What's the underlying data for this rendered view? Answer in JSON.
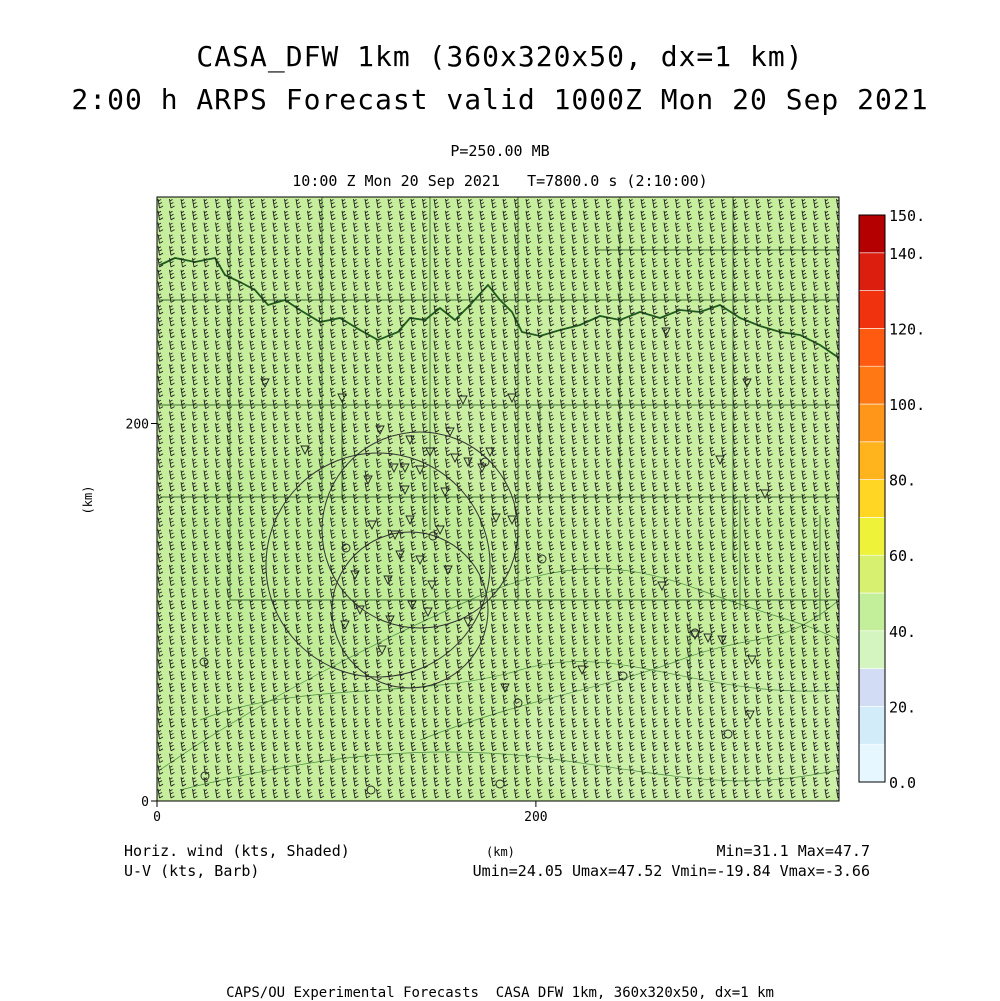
{
  "header": {
    "title_line1": "CASA_DFW 1km (360x320x50, dx=1 km)",
    "title_line2": "2:00 h ARPS Forecast valid 1000Z Mon 20 Sep 2021",
    "pressure_level": "P=250.00 MB",
    "time_line": "10:00 Z Mon 20 Sep 2021   T=7800.0 s (2:10:00)"
  },
  "bottom_labels": {
    "left_line1": "Horiz. wind (kts, Shaded)",
    "left_line2": "U-V (kts, Barb)",
    "right_line1": "Min=31.1 Max=47.7",
    "right_line2": "Umin=24.05 Umax=47.52 Vmin=-19.84 Vmax=-3.66",
    "x_unit": "(km)"
  },
  "footer": "CAPS/OU Experimental Forecasts  CASA DFW 1km, 360x320x50, dx=1 km",
  "chart_data": {
    "type": "heatmap",
    "xlabel": "(km)",
    "ylabel": "(km)",
    "xlim": [
      0,
      360
    ],
    "ylim": [
      0,
      320
    ],
    "x_ticks": [
      "0",
      "200"
    ],
    "y_ticks": [
      "0",
      "200"
    ],
    "field": "Horiz. wind (kts, Shaded)",
    "overlay": "U-V (kts, Barb)",
    "stats": {
      "min": 31.1,
      "max": 47.7,
      "umin": 24.05,
      "umax": 47.52,
      "vmin": -19.84,
      "vmax": -3.66
    },
    "colorbar": {
      "range": [
        0,
        150
      ],
      "tick_labels": [
        "150.",
        "140.",
        "120.",
        "100.",
        "80.",
        "60.",
        "40.",
        "20.",
        "0.0"
      ],
      "tick_values": [
        150,
        140,
        120,
        100,
        80,
        60,
        40,
        20,
        0
      ],
      "bins": [
        {
          "from": 0,
          "to": 10,
          "color": "#e6f7ff"
        },
        {
          "from": 10,
          "to": 20,
          "color": "#d2ecfa"
        },
        {
          "from": 20,
          "to": 30,
          "color": "#d2dcf5"
        },
        {
          "from": 30,
          "to": 40,
          "color": "#d4f5c0"
        },
        {
          "from": 40,
          "to": 50,
          "color": "#c4ef9a"
        },
        {
          "from": 50,
          "to": 60,
          "color": "#d7f070"
        },
        {
          "from": 60,
          "to": 70,
          "color": "#eef33a"
        },
        {
          "from": 70,
          "to": 80,
          "color": "#ffd624"
        },
        {
          "from": 80,
          "to": 90,
          "color": "#ffb41e"
        },
        {
          "from": 90,
          "to": 100,
          "color": "#ff961a"
        },
        {
          "from": 100,
          "to": 110,
          "color": "#ff7814"
        },
        {
          "from": 110,
          "to": 120,
          "color": "#ff5a0f"
        },
        {
          "from": 120,
          "to": 130,
          "color": "#f0320f"
        },
        {
          "from": 130,
          "to": 140,
          "color": "#dc1e0f"
        },
        {
          "from": 140,
          "to": 150,
          "color": "#b40000"
        }
      ]
    },
    "field_color": "#c6ee9c",
    "grid_lines": false
  }
}
